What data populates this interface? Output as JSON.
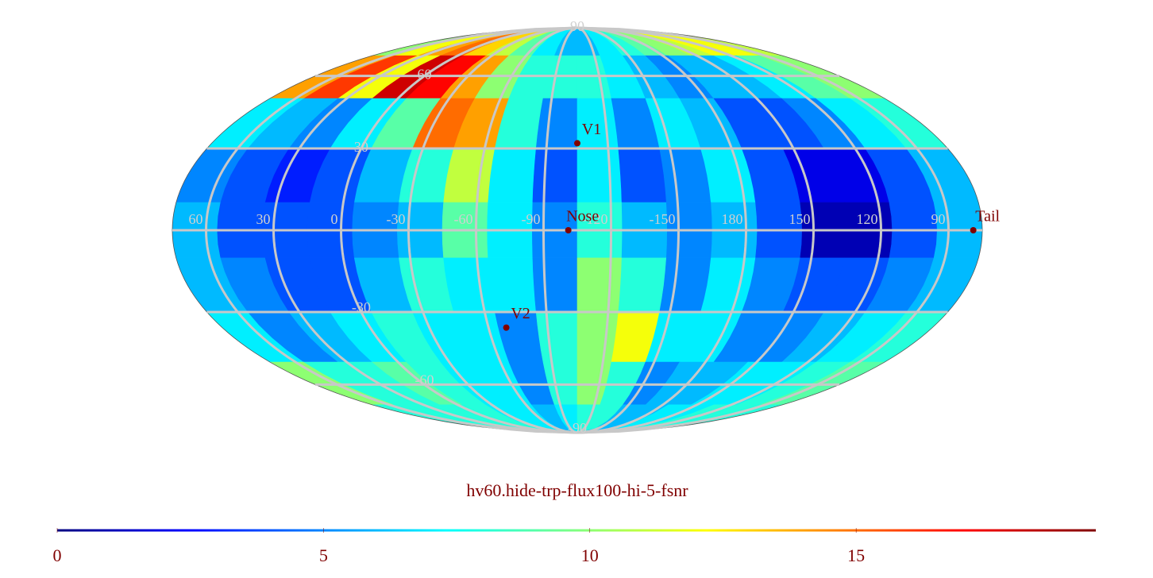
{
  "chart_data": {
    "type": "mollweide-heatmap",
    "title": "hv60.hide-trp-flux100-hi-5-fsnr",
    "colormap": "jet",
    "clim": [
      0,
      19.5
    ],
    "cticks": [
      0,
      5,
      10,
      15
    ],
    "grid_color": "#c8c8c8",
    "lon_labels": [
      60,
      30,
      0,
      -30,
      -60,
      -90,
      -120,
      -150,
      180,
      150,
      120,
      90
    ],
    "lat_labels": [
      90,
      60,
      30,
      -30,
      -60,
      -90
    ],
    "values": [
      [
        10,
        12,
        14,
        15,
        13,
        11,
        9,
        7,
        6,
        6,
        7,
        8,
        9,
        10,
        11,
        12,
        12,
        11
      ],
      [
        14,
        16,
        12,
        18,
        17,
        14,
        10,
        8,
        8,
        8,
        7,
        6,
        5,
        6,
        6,
        7,
        9,
        10
      ],
      [
        7,
        6,
        5,
        7,
        9,
        15,
        14,
        8,
        5,
        7,
        5,
        7,
        6,
        4,
        4,
        5,
        7,
        8
      ],
      [
        5,
        4,
        3,
        4,
        6,
        8,
        11,
        7,
        4,
        7,
        4,
        5,
        7,
        4,
        2,
        2,
        4,
        6
      ],
      [
        6,
        4,
        4,
        4,
        5,
        6,
        9,
        7,
        5,
        8,
        6,
        5,
        6,
        4,
        1,
        1,
        4,
        6
      ],
      [
        6,
        5,
        4,
        4,
        6,
        8,
        7,
        7,
        5,
        10,
        8,
        5,
        7,
        5,
        4,
        4,
        5,
        6
      ],
      [
        7,
        5,
        6,
        7,
        8,
        7,
        7,
        5,
        8,
        10,
        12,
        7,
        7,
        5,
        5,
        6,
        7,
        8
      ],
      [
        10,
        8,
        8,
        9,
        8,
        7,
        7,
        5,
        8,
        10,
        8,
        5,
        6,
        6,
        7,
        7,
        8,
        9
      ],
      [
        8,
        8,
        8,
        8,
        8,
        7,
        7,
        6,
        7,
        8,
        8,
        6,
        6,
        7,
        7,
        8,
        8,
        8
      ]
    ],
    "markers": [
      {
        "label": "V1",
        "lon": -105,
        "lat": 32
      },
      {
        "label": "Nose",
        "lon": -101,
        "lat": 0
      },
      {
        "label": "Tail",
        "lon": 79,
        "lat": 0
      },
      {
        "label": "V2",
        "lon": -69,
        "lat": -36
      }
    ]
  }
}
